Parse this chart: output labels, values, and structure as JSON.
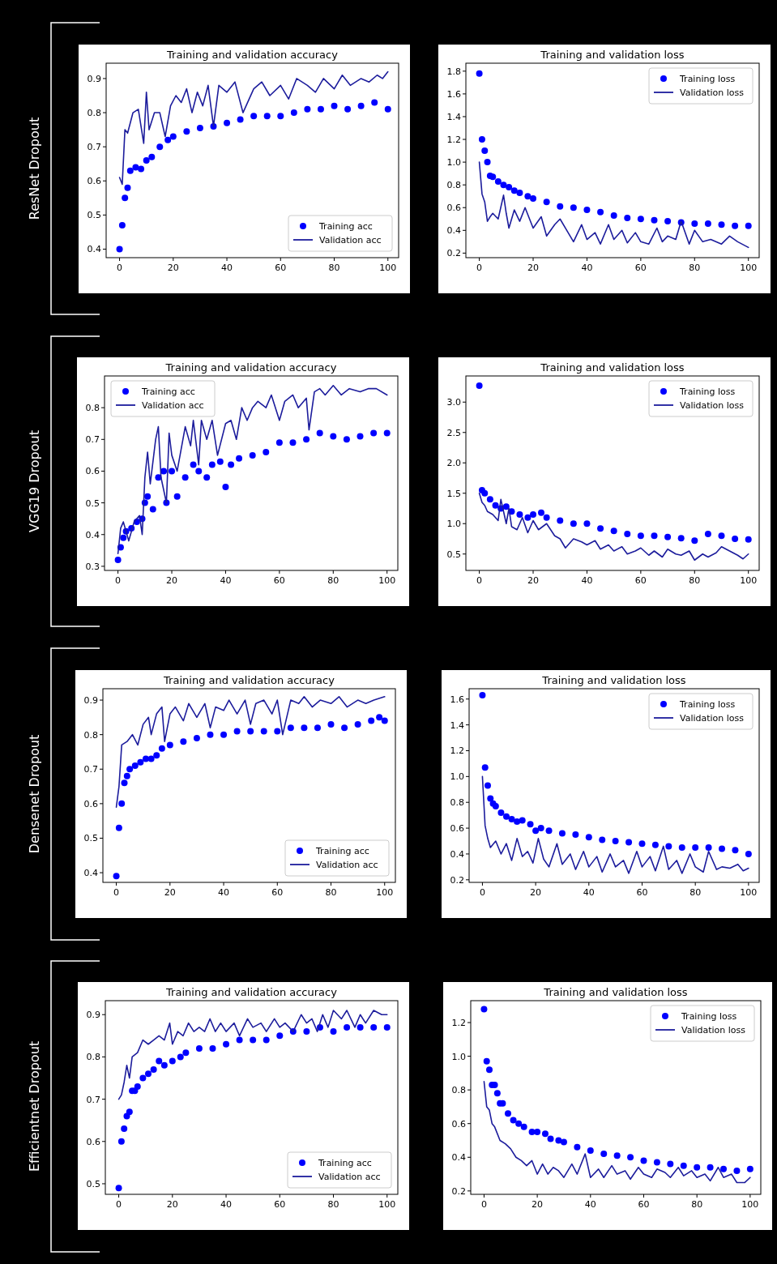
{
  "chart_data": [
    {
      "type": "line",
      "title": "Training and validation accuracy",
      "annotations": [
        "ResNet Dropout"
      ],
      "xlim": [
        -5,
        104
      ],
      "ylim": [
        0.375,
        0.945
      ],
      "xticks": [
        0,
        20,
        40,
        60,
        80,
        100
      ],
      "yticks": [
        0.4,
        0.5,
        0.6,
        0.7,
        0.8,
        0.9
      ],
      "legend": "bottom right",
      "series": [
        {
          "name": "Training acc",
          "type": "scatter",
          "color": "#0000ff",
          "x": [
            0,
            1,
            2,
            3,
            4,
            6,
            8,
            10,
            12,
            15,
            18,
            20,
            25,
            30,
            35,
            40,
            45,
            50,
            55,
            60,
            65,
            70,
            75,
            80,
            85,
            90,
            95,
            100
          ],
          "values": [
            0.4,
            0.47,
            0.55,
            0.58,
            0.63,
            0.64,
            0.635,
            0.66,
            0.67,
            0.7,
            0.72,
            0.73,
            0.745,
            0.755,
            0.76,
            0.77,
            0.78,
            0.79,
            0.79,
            0.79,
            0.8,
            0.81,
            0.81,
            0.82,
            0.81,
            0.82,
            0.83,
            0.81
          ]
        },
        {
          "name": "Validation acc",
          "type": "line",
          "color": "#1c1c9c",
          "x": [
            0,
            1,
            2,
            3,
            5,
            7,
            9,
            10,
            11,
            13,
            15,
            17,
            19,
            21,
            23,
            25,
            27,
            29,
            31,
            33,
            35,
            37,
            40,
            43,
            46,
            50,
            53,
            56,
            60,
            63,
            66,
            70,
            73,
            76,
            80,
            83,
            86,
            90,
            93,
            96,
            98,
            100
          ],
          "values": [
            0.61,
            0.59,
            0.75,
            0.74,
            0.8,
            0.81,
            0.71,
            0.86,
            0.75,
            0.8,
            0.8,
            0.73,
            0.82,
            0.85,
            0.83,
            0.87,
            0.8,
            0.86,
            0.82,
            0.88,
            0.76,
            0.88,
            0.86,
            0.89,
            0.8,
            0.87,
            0.89,
            0.85,
            0.88,
            0.84,
            0.9,
            0.88,
            0.86,
            0.9,
            0.87,
            0.91,
            0.88,
            0.9,
            0.89,
            0.91,
            0.9,
            0.92
          ]
        }
      ]
    },
    {
      "type": "line",
      "title": "Training and validation loss",
      "xlim": [
        -5,
        104
      ],
      "ylim": [
        0.16,
        1.87
      ],
      "xticks": [
        0,
        20,
        40,
        60,
        80,
        100
      ],
      "yticks": [
        0.2,
        0.4,
        0.6,
        0.8,
        {
          "value": 1,
          "label": "1.0"
        },
        1.2,
        1.4,
        1.6,
        1.8
      ],
      "legend": "top right",
      "series": [
        {
          "name": "Training loss",
          "type": "scatter",
          "color": "#0000ff",
          "x": [
            0,
            1,
            2,
            3,
            4,
            5,
            7,
            9,
            11,
            13,
            15,
            18,
            20,
            25,
            30,
            35,
            40,
            45,
            50,
            55,
            60,
            65,
            70,
            75,
            80,
            85,
            90,
            95,
            100
          ],
          "values": [
            1.78,
            1.2,
            1.1,
            1.0,
            0.88,
            0.87,
            0.83,
            0.8,
            0.78,
            0.75,
            0.73,
            0.7,
            0.68,
            0.65,
            0.61,
            0.6,
            0.58,
            0.56,
            0.53,
            0.51,
            0.5,
            0.49,
            0.48,
            0.47,
            0.46,
            0.46,
            0.45,
            0.44,
            0.44
          ]
        },
        {
          "name": "Validation loss",
          "type": "line",
          "color": "#1c1c9c",
          "x": [
            0,
            1,
            2,
            3,
            4,
            5,
            7,
            9,
            10,
            11,
            13,
            15,
            17,
            20,
            23,
            25,
            28,
            30,
            33,
            35,
            38,
            40,
            43,
            45,
            48,
            50,
            53,
            55,
            58,
            60,
            63,
            66,
            68,
            70,
            73,
            75,
            78,
            80,
            83,
            86,
            90,
            93,
            96,
            100
          ],
          "values": [
            1.0,
            0.72,
            0.65,
            0.48,
            0.52,
            0.55,
            0.5,
            0.71,
            0.55,
            0.42,
            0.58,
            0.48,
            0.6,
            0.42,
            0.52,
            0.35,
            0.45,
            0.5,
            0.38,
            0.3,
            0.45,
            0.32,
            0.38,
            0.28,
            0.45,
            0.32,
            0.4,
            0.29,
            0.38,
            0.3,
            0.28,
            0.42,
            0.3,
            0.35,
            0.32,
            0.48,
            0.28,
            0.4,
            0.3,
            0.32,
            0.28,
            0.35,
            0.3,
            0.25
          ]
        }
      ]
    },
    {
      "type": "line",
      "title": "Training and validation accuracy",
      "annotations": [
        "VGG19 Dropout"
      ],
      "xlim": [
        -5,
        104
      ],
      "ylim": [
        0.287,
        0.9
      ],
      "xticks": [
        0,
        20,
        40,
        60,
        80,
        100
      ],
      "yticks": [
        0.3,
        0.4,
        0.5,
        0.6,
        0.7,
        0.8
      ],
      "legend": "top left",
      "series": [
        {
          "name": "Training acc",
          "type": "scatter",
          "color": "#0000ff",
          "x": [
            0,
            1,
            2,
            3,
            5,
            7,
            9,
            10,
            11,
            13,
            15,
            17,
            18,
            20,
            22,
            25,
            28,
            30,
            33,
            35,
            38,
            40,
            42,
            45,
            50,
            55,
            60,
            65,
            70,
            75,
            80,
            85,
            90,
            95,
            100
          ],
          "values": [
            0.32,
            0.36,
            0.39,
            0.41,
            0.42,
            0.44,
            0.45,
            0.5,
            0.52,
            0.48,
            0.58,
            0.6,
            0.5,
            0.6,
            0.52,
            0.58,
            0.62,
            0.6,
            0.58,
            0.62,
            0.63,
            0.55,
            0.62,
            0.64,
            0.65,
            0.66,
            0.69,
            0.69,
            0.7,
            0.72,
            0.71,
            0.7,
            0.71,
            0.72,
            0.72
          ]
        },
        {
          "name": "Validation acc",
          "type": "line",
          "color": "#1c1c9c",
          "x": [
            0,
            1,
            2,
            4,
            6,
            8,
            9,
            10,
            11,
            12,
            14,
            15,
            16,
            18,
            19,
            20,
            22,
            25,
            27,
            28,
            30,
            31,
            33,
            35,
            37,
            40,
            42,
            44,
            46,
            48,
            50,
            52,
            55,
            57,
            60,
            62,
            65,
            67,
            70,
            71,
            73,
            75,
            77,
            80,
            83,
            86,
            90,
            93,
            96,
            100
          ],
          "values": [
            0.34,
            0.42,
            0.44,
            0.38,
            0.44,
            0.46,
            0.4,
            0.58,
            0.66,
            0.56,
            0.7,
            0.74,
            0.58,
            0.5,
            0.72,
            0.65,
            0.6,
            0.74,
            0.68,
            0.76,
            0.62,
            0.76,
            0.7,
            0.76,
            0.65,
            0.75,
            0.76,
            0.7,
            0.8,
            0.76,
            0.8,
            0.82,
            0.8,
            0.84,
            0.76,
            0.82,
            0.84,
            0.8,
            0.83,
            0.73,
            0.85,
            0.86,
            0.84,
            0.87,
            0.84,
            0.86,
            0.85,
            0.86,
            0.86,
            0.84
          ]
        }
      ]
    },
    {
      "type": "line",
      "title": "Training and validation loss",
      "xlim": [
        -5,
        104
      ],
      "ylim": [
        0.23,
        3.43
      ],
      "xticks": [
        0,
        20,
        40,
        60,
        80,
        100
      ],
      "yticks": [
        0.5,
        {
          "value": 1,
          "label": "1.0"
        },
        1.5,
        {
          "value": 2,
          "label": "2.0"
        },
        2.5,
        {
          "value": 3,
          "label": "3.0"
        }
      ],
      "legend": "top right",
      "series": [
        {
          "name": "Training loss",
          "type": "scatter",
          "color": "#0000ff",
          "x": [
            0,
            1,
            2,
            4,
            6,
            8,
            10,
            12,
            15,
            18,
            20,
            23,
            25,
            30,
            35,
            40,
            45,
            50,
            55,
            60,
            65,
            70,
            75,
            80,
            85,
            90,
            95,
            100
          ],
          "values": [
            3.27,
            1.55,
            1.5,
            1.4,
            1.3,
            1.25,
            1.28,
            1.2,
            1.15,
            1.1,
            1.15,
            1.18,
            1.1,
            1.05,
            1.0,
            1.0,
            0.92,
            0.88,
            0.83,
            0.8,
            0.8,
            0.78,
            0.76,
            0.72,
            0.83,
            0.8,
            0.75,
            0.74
          ]
        },
        {
          "name": "Validation loss",
          "type": "line",
          "color": "#1c1c9c",
          "x": [
            0,
            1,
            2,
            3,
            5,
            7,
            8,
            10,
            11,
            12,
            14,
            16,
            18,
            20,
            22,
            25,
            28,
            30,
            32,
            35,
            38,
            40,
            43,
            45,
            48,
            50,
            53,
            55,
            58,
            60,
            63,
            65,
            68,
            70,
            73,
            75,
            78,
            80,
            83,
            85,
            88,
            90,
            93,
            96,
            98,
            100
          ],
          "values": [
            1.5,
            1.35,
            1.3,
            1.2,
            1.15,
            1.05,
            1.4,
            1.0,
            1.25,
            0.95,
            0.9,
            1.1,
            0.85,
            1.05,
            0.9,
            1.0,
            0.8,
            0.75,
            0.6,
            0.75,
            0.7,
            0.65,
            0.72,
            0.58,
            0.65,
            0.55,
            0.62,
            0.5,
            0.55,
            0.6,
            0.48,
            0.55,
            0.45,
            0.58,
            0.5,
            0.48,
            0.55,
            0.4,
            0.5,
            0.45,
            0.52,
            0.62,
            0.55,
            0.48,
            0.42,
            0.5
          ]
        }
      ]
    },
    {
      "type": "line",
      "title": "Training and validation accuracy",
      "annotations": [
        "Densenet Dropout"
      ],
      "xlim": [
        -5,
        104
      ],
      "ylim": [
        0.372,
        0.933
      ],
      "xticks": [
        0,
        20,
        40,
        60,
        80,
        100
      ],
      "yticks": [
        0.4,
        0.5,
        0.6,
        0.7,
        0.8,
        0.9
      ],
      "legend": "bottom right",
      "series": [
        {
          "name": "Training acc",
          "type": "scatter",
          "color": "#0000ff",
          "x": [
            0,
            1,
            2,
            3,
            4,
            5,
            7,
            9,
            11,
            13,
            15,
            17,
            20,
            25,
            30,
            35,
            40,
            45,
            50,
            55,
            60,
            65,
            70,
            75,
            80,
            85,
            90,
            95,
            98,
            100
          ],
          "values": [
            0.39,
            0.53,
            0.6,
            0.66,
            0.68,
            0.7,
            0.71,
            0.72,
            0.73,
            0.73,
            0.74,
            0.76,
            0.77,
            0.78,
            0.79,
            0.8,
            0.8,
            0.81,
            0.81,
            0.81,
            0.81,
            0.82,
            0.82,
            0.82,
            0.83,
            0.82,
            0.83,
            0.84,
            0.85,
            0.84
          ]
        },
        {
          "name": "Validation acc",
          "type": "line",
          "color": "#1c1c9c",
          "x": [
            0,
            1,
            2,
            4,
            6,
            8,
            10,
            12,
            13,
            15,
            17,
            18,
            20,
            22,
            25,
            27,
            30,
            33,
            35,
            37,
            40,
            42,
            45,
            48,
            50,
            52,
            55,
            58,
            60,
            62,
            65,
            68,
            70,
            73,
            76,
            80,
            83,
            86,
            90,
            93,
            96,
            100
          ],
          "values": [
            0.59,
            0.65,
            0.77,
            0.78,
            0.8,
            0.77,
            0.83,
            0.85,
            0.8,
            0.86,
            0.88,
            0.78,
            0.86,
            0.88,
            0.84,
            0.89,
            0.85,
            0.89,
            0.82,
            0.88,
            0.87,
            0.9,
            0.86,
            0.9,
            0.83,
            0.89,
            0.9,
            0.86,
            0.9,
            0.8,
            0.9,
            0.89,
            0.91,
            0.88,
            0.9,
            0.89,
            0.91,
            0.88,
            0.9,
            0.89,
            0.9,
            0.91
          ]
        }
      ]
    },
    {
      "type": "line",
      "title": "Training and validation loss",
      "xlim": [
        -5,
        104
      ],
      "ylim": [
        0.18,
        1.68
      ],
      "xticks": [
        0,
        20,
        40,
        60,
        80,
        100
      ],
      "yticks": [
        0.2,
        0.4,
        0.6,
        0.8,
        {
          "value": 1,
          "label": "1.0"
        },
        1.2,
        1.4,
        1.6
      ],
      "legend": "top right",
      "series": [
        {
          "name": "Training loss",
          "type": "scatter",
          "color": "#0000ff",
          "x": [
            0,
            1,
            2,
            3,
            4,
            5,
            7,
            9,
            11,
            13,
            15,
            18,
            20,
            22,
            25,
            30,
            35,
            40,
            45,
            50,
            55,
            60,
            65,
            70,
            75,
            80,
            85,
            90,
            95,
            100
          ],
          "values": [
            1.63,
            1.07,
            0.93,
            0.83,
            0.79,
            0.77,
            0.72,
            0.69,
            0.67,
            0.65,
            0.66,
            0.63,
            0.58,
            0.6,
            0.58,
            0.56,
            0.55,
            0.53,
            0.51,
            0.5,
            0.49,
            0.48,
            0.47,
            0.46,
            0.45,
            0.45,
            0.45,
            0.44,
            0.43,
            0.4
          ]
        },
        {
          "name": "Validation loss",
          "type": "line",
          "color": "#1c1c9c",
          "x": [
            0,
            1,
            2,
            3,
            5,
            7,
            9,
            11,
            13,
            15,
            17,
            19,
            21,
            23,
            25,
            28,
            30,
            33,
            35,
            38,
            40,
            43,
            45,
            48,
            50,
            53,
            55,
            58,
            60,
            63,
            65,
            68,
            70,
            73,
            75,
            78,
            80,
            83,
            85,
            88,
            90,
            93,
            96,
            98,
            100
          ],
          "values": [
            1.0,
            0.62,
            0.52,
            0.45,
            0.5,
            0.4,
            0.48,
            0.35,
            0.52,
            0.38,
            0.42,
            0.33,
            0.52,
            0.36,
            0.3,
            0.48,
            0.32,
            0.4,
            0.28,
            0.42,
            0.3,
            0.38,
            0.26,
            0.4,
            0.3,
            0.35,
            0.25,
            0.42,
            0.3,
            0.38,
            0.27,
            0.46,
            0.28,
            0.35,
            0.25,
            0.4,
            0.3,
            0.26,
            0.42,
            0.28,
            0.3,
            0.29,
            0.32,
            0.27,
            0.29
          ]
        }
      ]
    },
    {
      "type": "line",
      "title": "Training and validation accuracy",
      "annotations": [
        "Efficientnet Dropout"
      ],
      "xlim": [
        -5,
        104
      ],
      "ylim": [
        0.475,
        0.933
      ],
      "xticks": [
        0,
        20,
        40,
        60,
        80,
        100
      ],
      "yticks": [
        0.5,
        0.6,
        0.7,
        0.8,
        0.9
      ],
      "legend": "bottom right",
      "series": [
        {
          "name": "Training acc",
          "type": "scatter",
          "color": "#0000ff",
          "x": [
            0,
            1,
            2,
            3,
            4,
            5,
            6,
            7,
            9,
            11,
            13,
            15,
            17,
            20,
            23,
            25,
            30,
            35,
            40,
            45,
            50,
            55,
            60,
            65,
            70,
            75,
            80,
            85,
            90,
            95,
            100
          ],
          "values": [
            0.49,
            0.6,
            0.63,
            0.66,
            0.67,
            0.72,
            0.72,
            0.73,
            0.75,
            0.76,
            0.77,
            0.79,
            0.78,
            0.79,
            0.8,
            0.81,
            0.82,
            0.82,
            0.83,
            0.84,
            0.84,
            0.84,
            0.85,
            0.86,
            0.86,
            0.87,
            0.86,
            0.87,
            0.87,
            0.87,
            0.87
          ]
        },
        {
          "name": "Validation acc",
          "type": "line",
          "color": "#1c1c9c",
          "x": [
            0,
            1,
            2,
            3,
            4,
            5,
            7,
            9,
            11,
            13,
            15,
            17,
            19,
            20,
            22,
            24,
            26,
            28,
            30,
            32,
            34,
            36,
            38,
            40,
            43,
            45,
            48,
            50,
            53,
            55,
            58,
            60,
            62,
            65,
            68,
            70,
            72,
            74,
            76,
            78,
            80,
            83,
            85,
            88,
            90,
            92,
            95,
            98,
            100
          ],
          "values": [
            0.7,
            0.71,
            0.74,
            0.78,
            0.75,
            0.8,
            0.81,
            0.84,
            0.83,
            0.84,
            0.85,
            0.84,
            0.88,
            0.83,
            0.86,
            0.85,
            0.88,
            0.86,
            0.87,
            0.86,
            0.89,
            0.86,
            0.88,
            0.86,
            0.88,
            0.85,
            0.89,
            0.87,
            0.88,
            0.86,
            0.89,
            0.87,
            0.88,
            0.86,
            0.9,
            0.88,
            0.89,
            0.86,
            0.9,
            0.87,
            0.91,
            0.89,
            0.91,
            0.87,
            0.9,
            0.88,
            0.91,
            0.9,
            0.9
          ]
        }
      ]
    },
    {
      "type": "line",
      "title": "Training and validation loss",
      "xlim": [
        -5,
        104
      ],
      "ylim": [
        0.18,
        1.33
      ],
      "xticks": [
        0,
        20,
        40,
        60,
        80,
        100
      ],
      "yticks": [
        0.2,
        0.4,
        0.6,
        0.8,
        {
          "value": 1,
          "label": "1.0"
        },
        1.2
      ],
      "legend": "top right",
      "series": [
        {
          "name": "Training loss",
          "type": "scatter",
          "color": "#0000ff",
          "x": [
            0,
            1,
            2,
            3,
            4,
            5,
            6,
            7,
            9,
            11,
            13,
            15,
            18,
            20,
            23,
            25,
            28,
            30,
            35,
            40,
            45,
            50,
            55,
            60,
            65,
            70,
            75,
            80,
            85,
            90,
            95,
            100
          ],
          "values": [
            1.28,
            0.97,
            0.92,
            0.83,
            0.83,
            0.78,
            0.72,
            0.72,
            0.66,
            0.62,
            0.6,
            0.58,
            0.55,
            0.55,
            0.54,
            0.51,
            0.5,
            0.49,
            0.46,
            0.44,
            0.42,
            0.41,
            0.4,
            0.38,
            0.37,
            0.36,
            0.35,
            0.34,
            0.34,
            0.33,
            0.32,
            0.33
          ]
        },
        {
          "name": "Validation loss",
          "type": "line",
          "color": "#1c1c9c",
          "x": [
            0,
            1,
            2,
            3,
            4,
            6,
            8,
            10,
            12,
            14,
            16,
            18,
            20,
            22,
            24,
            26,
            28,
            30,
            33,
            35,
            38,
            40,
            43,
            45,
            48,
            50,
            53,
            55,
            58,
            60,
            63,
            65,
            68,
            70,
            73,
            75,
            78,
            80,
            83,
            85,
            88,
            90,
            93,
            95,
            98,
            100
          ],
          "values": [
            0.85,
            0.7,
            0.68,
            0.6,
            0.58,
            0.5,
            0.48,
            0.45,
            0.4,
            0.38,
            0.35,
            0.38,
            0.3,
            0.36,
            0.3,
            0.34,
            0.32,
            0.28,
            0.36,
            0.3,
            0.42,
            0.28,
            0.33,
            0.28,
            0.35,
            0.3,
            0.32,
            0.27,
            0.34,
            0.3,
            0.28,
            0.33,
            0.31,
            0.28,
            0.34,
            0.29,
            0.32,
            0.28,
            0.3,
            0.26,
            0.34,
            0.28,
            0.3,
            0.25,
            0.25,
            0.28
          ]
        }
      ]
    }
  ]
}
